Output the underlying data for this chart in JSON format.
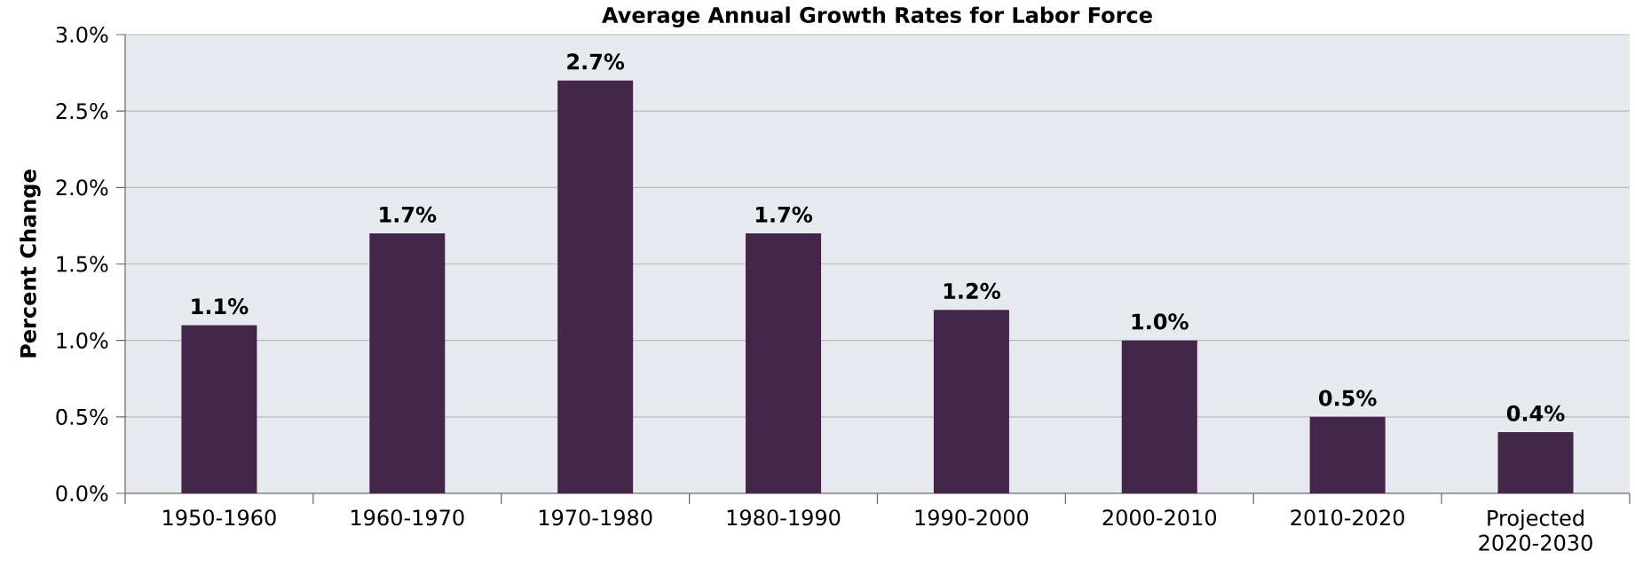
{
  "chart_data": {
    "type": "bar",
    "title": "Average Annual Growth Rates for Labor Force",
    "ylabel": "Percent Change",
    "categories": [
      "1950-1960",
      "1960-1970",
      "1970-1980",
      "1980-1990",
      "1990-2000",
      "2000-2010",
      "2010-2020",
      "Projected 2020-2030"
    ],
    "values": [
      1.1,
      1.7,
      2.7,
      1.7,
      1.2,
      1.0,
      0.5,
      0.4
    ],
    "value_labels": [
      "1.1%",
      "1.7%",
      "2.7%",
      "1.7%",
      "1.2%",
      "1.0%",
      "0.5%",
      "0.4%"
    ],
    "color": "#43264a",
    "ylim": [
      0,
      3
    ],
    "yticks": [
      {
        "value": 0,
        "label": "0.0%"
      },
      {
        "value": 0.5,
        "label": "0.5%"
      },
      {
        "value": 1,
        "label": "1.0%"
      },
      {
        "value": 1.5,
        "label": "1.5%"
      },
      {
        "value": 2,
        "label": "2.0%"
      },
      {
        "value": 2.5,
        "label": "2.5%"
      },
      {
        "value": 3,
        "label": "3.0%"
      }
    ],
    "grid": "y"
  }
}
